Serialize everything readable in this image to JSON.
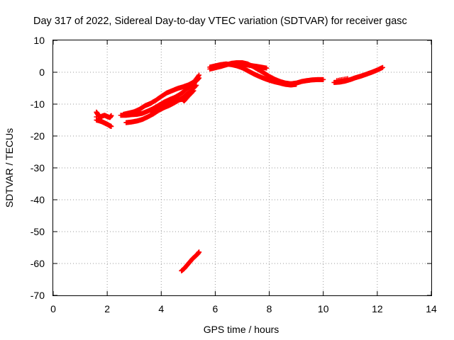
{
  "chart_data": {
    "type": "scatter",
    "title": "Day 317 of 2022, Sidereal Day-to-day VTEC variation (SDTVAR) for receiver gasc",
    "xlabel": "GPS time / hours",
    "ylabel": "SDTVAR / TECUs",
    "xlim": [
      0,
      14
    ],
    "ylim": [
      -70,
      10
    ],
    "xticks": [
      0,
      2,
      4,
      6,
      8,
      10,
      12,
      14
    ],
    "yticks": [
      10,
      0,
      -10,
      -20,
      -30,
      -40,
      -50,
      -60,
      -70
    ],
    "grid": true,
    "marker": "plus",
    "color": "#ff0000",
    "series": [
      {
        "name": "arc-start-cluster",
        "points": [
          [
            1.6,
            -12.5
          ],
          [
            1.65,
            -13.2
          ],
          [
            1.7,
            -13.5
          ],
          [
            1.75,
            -14.3
          ],
          [
            1.8,
            -13.8
          ],
          [
            1.9,
            -13.5
          ],
          [
            2.0,
            -13.9
          ],
          [
            2.1,
            -14.2
          ],
          [
            2.15,
            -13.6
          ],
          [
            1.6,
            -15.0
          ],
          [
            1.7,
            -15.2
          ],
          [
            1.8,
            -15.5
          ],
          [
            1.9,
            -15.9
          ],
          [
            2.0,
            -16.3
          ],
          [
            2.1,
            -16.8
          ],
          [
            2.15,
            -17.0
          ],
          [
            1.6,
            -14.0
          ]
        ]
      },
      {
        "name": "arc-morning-a",
        "points": [
          [
            2.5,
            -13.5
          ],
          [
            2.7,
            -13.5
          ],
          [
            2.9,
            -13.3
          ],
          [
            3.1,
            -13.2
          ],
          [
            3.3,
            -12.9
          ],
          [
            3.5,
            -12.2
          ],
          [
            3.7,
            -11.4
          ],
          [
            3.9,
            -10.4
          ],
          [
            4.1,
            -9.4
          ],
          [
            4.3,
            -8.6
          ],
          [
            4.5,
            -7.9
          ],
          [
            4.7,
            -6.9
          ],
          [
            4.9,
            -5.6
          ],
          [
            5.1,
            -4.2
          ],
          [
            5.3,
            -2.7
          ],
          [
            5.4,
            -1.8
          ]
        ]
      },
      {
        "name": "arc-morning-b",
        "points": [
          [
            2.6,
            -13.2
          ],
          [
            2.8,
            -12.8
          ],
          [
            3.0,
            -12.4
          ],
          [
            3.2,
            -11.6
          ],
          [
            3.4,
            -10.5
          ],
          [
            3.6,
            -9.8
          ],
          [
            3.8,
            -8.8
          ],
          [
            4.0,
            -7.6
          ],
          [
            4.2,
            -6.5
          ],
          [
            4.4,
            -5.8
          ],
          [
            4.6,
            -5.1
          ],
          [
            4.8,
            -4.6
          ],
          [
            5.0,
            -4.0
          ],
          [
            5.2,
            -3.1
          ],
          [
            5.4,
            -0.9
          ]
        ]
      },
      {
        "name": "arc-morning-c",
        "points": [
          [
            2.7,
            -15.8
          ],
          [
            2.9,
            -15.6
          ],
          [
            3.1,
            -15.3
          ],
          [
            3.3,
            -14.8
          ],
          [
            3.5,
            -14.0
          ],
          [
            3.7,
            -13.1
          ],
          [
            3.9,
            -12.0
          ],
          [
            4.1,
            -11.1
          ],
          [
            4.3,
            -10.4
          ],
          [
            4.5,
            -9.5
          ],
          [
            4.7,
            -8.5
          ],
          [
            4.9,
            -7.2
          ],
          [
            5.1,
            -5.8
          ],
          [
            5.3,
            -4.1
          ]
        ]
      },
      {
        "name": "arc-morning-d",
        "points": [
          [
            3.6,
            -12.0
          ],
          [
            3.8,
            -11.2
          ],
          [
            4.0,
            -10.3
          ],
          [
            4.2,
            -9.6
          ],
          [
            4.4,
            -9.0
          ],
          [
            4.6,
            -8.7
          ],
          [
            4.8,
            -8.5
          ],
          [
            4.85,
            -9.0
          ],
          [
            5.0,
            -7.5
          ],
          [
            5.2,
            -5.8
          ]
        ]
      },
      {
        "name": "arc-outlier",
        "points": [
          [
            4.75,
            -62.3
          ],
          [
            4.85,
            -61.6
          ],
          [
            4.95,
            -60.6
          ],
          [
            5.05,
            -59.6
          ],
          [
            5.15,
            -58.6
          ],
          [
            5.25,
            -57.8
          ],
          [
            5.35,
            -57.0
          ],
          [
            5.4,
            -56.4
          ]
        ]
      },
      {
        "name": "arc-afternoon",
        "points": [
          [
            5.8,
            1.0
          ],
          [
            6.0,
            1.4
          ],
          [
            6.2,
            1.8
          ],
          [
            6.4,
            2.3
          ],
          [
            6.6,
            2.8
          ],
          [
            6.8,
            3.0
          ],
          [
            7.0,
            3.0
          ],
          [
            7.2,
            2.6
          ],
          [
            7.4,
            1.8
          ],
          [
            7.6,
            0.8
          ],
          [
            7.8,
            -0.2
          ],
          [
            8.0,
            -1.3
          ],
          [
            8.2,
            -2.2
          ],
          [
            8.4,
            -2.9
          ],
          [
            8.6,
            -3.4
          ],
          [
            8.8,
            -3.6
          ],
          [
            9.0,
            -3.4
          ],
          [
            9.2,
            -2.9
          ],
          [
            9.4,
            -2.6
          ],
          [
            9.6,
            -2.4
          ],
          [
            9.8,
            -2.3
          ],
          [
            10.0,
            -2.3
          ]
        ]
      },
      {
        "name": "arc-afternoon-b",
        "points": [
          [
            5.8,
            1.6
          ],
          [
            6.0,
            2.0
          ],
          [
            6.2,
            2.4
          ],
          [
            6.4,
            2.6
          ],
          [
            6.6,
            2.4
          ],
          [
            6.8,
            2.0
          ],
          [
            7.0,
            1.4
          ],
          [
            7.2,
            0.5
          ],
          [
            7.4,
            -0.4
          ],
          [
            7.6,
            -1.2
          ],
          [
            7.8,
            -1.9
          ],
          [
            8.0,
            -2.5
          ],
          [
            8.2,
            -3.0
          ],
          [
            8.4,
            -3.4
          ],
          [
            8.6,
            -3.8
          ],
          [
            8.8,
            -4.0
          ],
          [
            9.0,
            -3.8
          ]
        ]
      },
      {
        "name": "arc-afternoon-c",
        "points": [
          [
            6.9,
            2.6
          ],
          [
            7.1,
            2.4
          ],
          [
            7.3,
            2.1
          ],
          [
            7.5,
            1.9
          ],
          [
            7.7,
            1.6
          ],
          [
            7.9,
            1.3
          ]
        ]
      },
      {
        "name": "arc-evening",
        "points": [
          [
            10.4,
            -3.2
          ],
          [
            10.6,
            -3.1
          ],
          [
            10.8,
            -2.8
          ],
          [
            11.0,
            -2.3
          ],
          [
            11.2,
            -1.7
          ],
          [
            11.4,
            -1.2
          ],
          [
            11.6,
            -0.6
          ],
          [
            11.8,
            0.0
          ],
          [
            12.0,
            0.7
          ],
          [
            12.2,
            1.5
          ],
          [
            10.5,
            -2.6
          ],
          [
            10.9,
            -2.0
          ]
        ]
      }
    ]
  }
}
